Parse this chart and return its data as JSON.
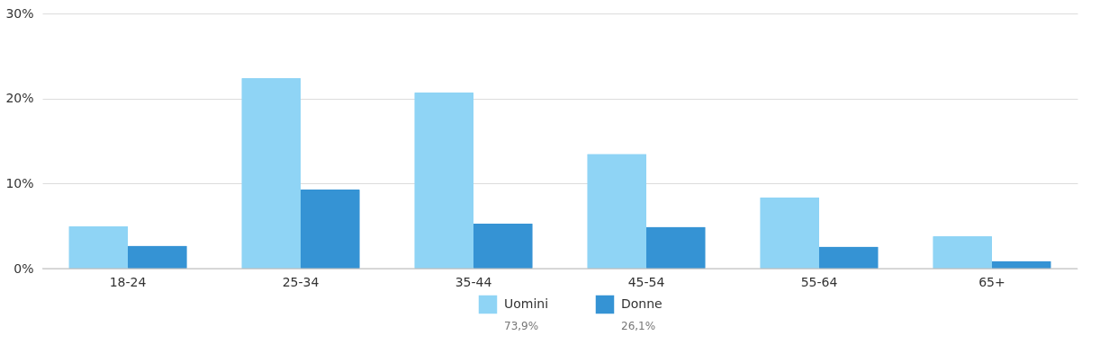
{
  "chart_data": {
    "type": "bar",
    "categories": [
      "18-24",
      "25-34",
      "35-44",
      "45-54",
      "55-64",
      "65+"
    ],
    "series": [
      {
        "name": "Uomini",
        "color": "#8fd4f5",
        "values": [
          5.0,
          22.4,
          20.7,
          13.5,
          8.4,
          3.8
        ]
      },
      {
        "name": "Donne",
        "color": "#3593d4",
        "values": [
          2.7,
          9.3,
          5.3,
          4.9,
          2.6,
          0.9
        ]
      }
    ],
    "ylim": [
      0,
      30
    ],
    "yticks": [
      {
        "value": 0,
        "label": "0%"
      },
      {
        "value": 10,
        "label": "10%"
      },
      {
        "value": 20,
        "label": "20%"
      },
      {
        "value": 30,
        "label": "30%"
      }
    ],
    "grid": "y",
    "legend": "bottom",
    "annotations": [
      "73,9%",
      "26,1%"
    ]
  }
}
